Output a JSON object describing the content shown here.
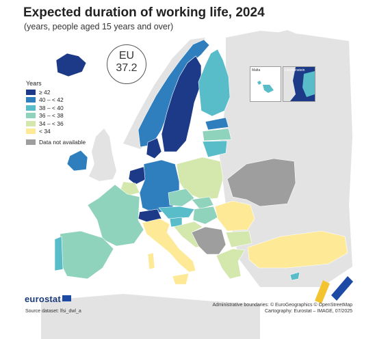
{
  "title": "Expected duration of working life, 2024",
  "subtitle": "(years, people aged 15 years and over)",
  "eu_badge": {
    "label": "EU",
    "value": "37.2"
  },
  "legend": {
    "title": "Years",
    "classes": [
      {
        "label": "≥ 42",
        "color": "#1c3a87"
      },
      {
        "label": "40 – < 42",
        "color": "#2f7fbf"
      },
      {
        "label": "38 – < 40",
        "color": "#58bcc9"
      },
      {
        "label": "36 – < 38",
        "color": "#90d3bd"
      },
      {
        "label": "34 – < 36",
        "color": "#d4e7ad"
      },
      {
        "label": "< 34",
        "color": "#fde996"
      }
    ],
    "na": {
      "label": "Data not available",
      "color": "#9e9e9e"
    }
  },
  "insets": {
    "malta": "Malta",
    "liechtenstein": "Liechtenstein"
  },
  "logo": "eurostat",
  "source": "Source dataset: lfsi_dwl_a",
  "credits": {
    "line1": "Administrative boundaries: © EuroGeographics © OpenStreetMap",
    "line2": "Cartography: Eurostat – IMAGE, 07/2025"
  },
  "colors": {
    "sea": "#ffffff",
    "non_eu_land": "#e3e3e3",
    "border": "#ffffff"
  }
}
